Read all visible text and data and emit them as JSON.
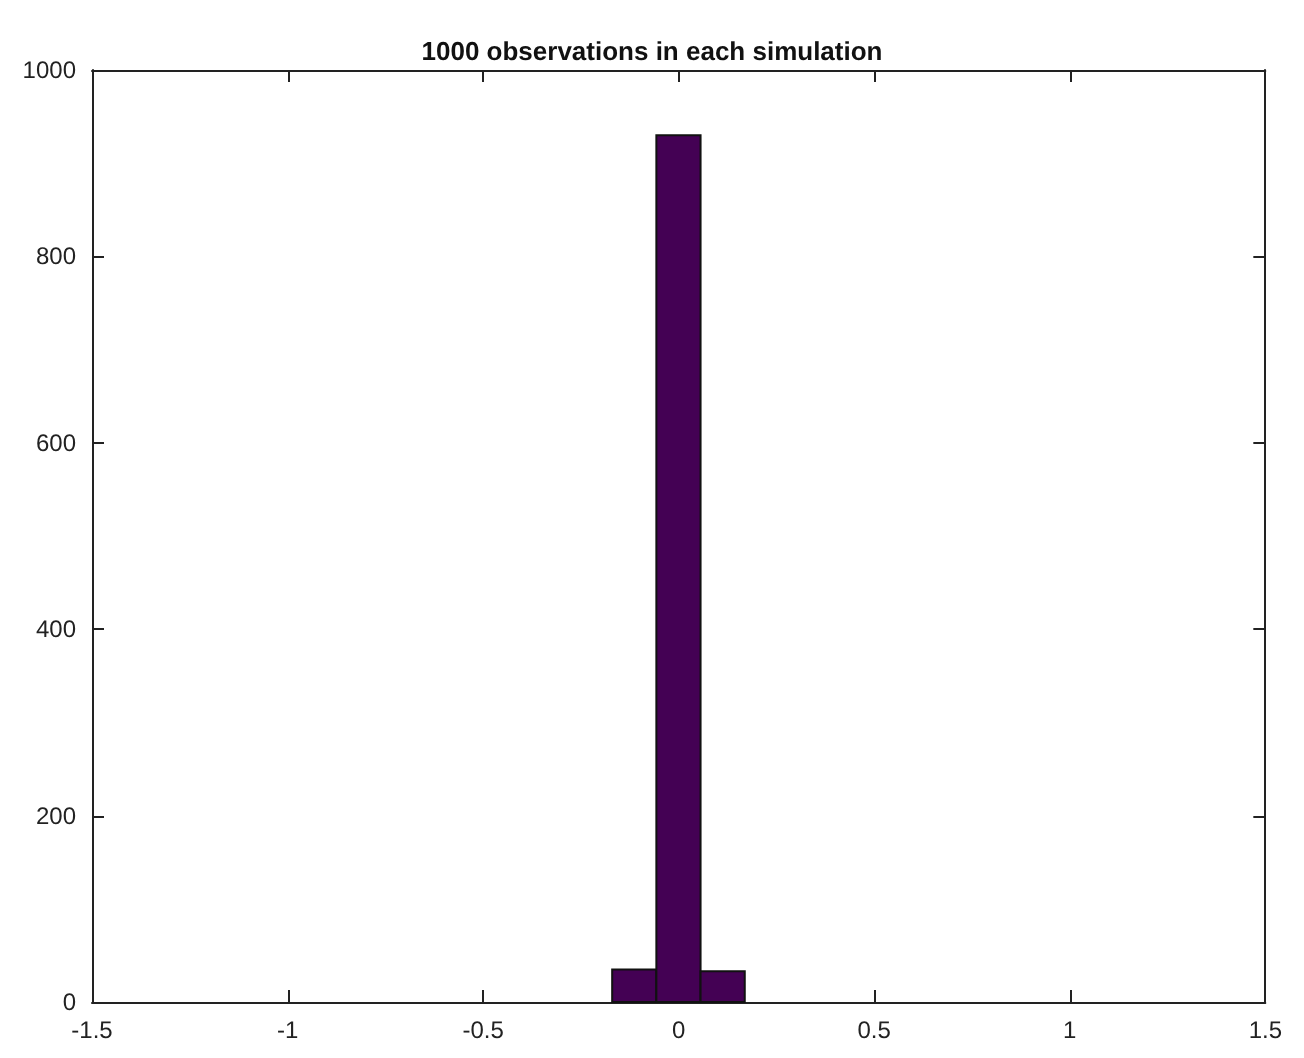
{
  "chart_data": {
    "type": "histogram",
    "title": "1000 observations in each simulation",
    "bins": [
      -0.17,
      -0.057,
      0.056,
      0.169
    ],
    "values": [
      35,
      930,
      33
    ],
    "color": "#440154",
    "xlim": [
      -1.5,
      1.5
    ],
    "xticks": [
      -1.5,
      -1,
      -0.5,
      0,
      0.5,
      1,
      1.5
    ],
    "ylim": [
      0,
      1000
    ],
    "yticks": [
      0,
      200,
      400,
      600,
      800,
      1000
    ],
    "grid": false
  }
}
